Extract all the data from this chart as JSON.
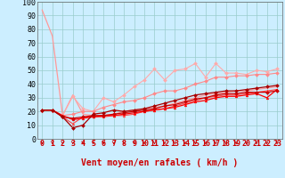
{
  "xlabel": "Vent moyen/en rafales ( km/h )",
  "background_color": "#cceeff",
  "grid_color": "#99cccc",
  "x_ticks": [
    0,
    1,
    2,
    3,
    4,
    5,
    6,
    7,
    8,
    9,
    10,
    11,
    12,
    13,
    14,
    15,
    16,
    17,
    18,
    19,
    20,
    21,
    22,
    23
  ],
  "y_ticks": [
    0,
    10,
    20,
    30,
    40,
    50,
    60,
    70,
    80,
    90,
    100
  ],
  "xlim": [
    -0.5,
    23.5
  ],
  "ylim": [
    0,
    100
  ],
  "series": [
    {
      "x": [
        0,
        1,
        2,
        3,
        4,
        5,
        6,
        7,
        8,
        9,
        10,
        11,
        12,
        13,
        14,
        15,
        16,
        17,
        18,
        19,
        20,
        21,
        22,
        23
      ],
      "y": [
        94,
        75,
        17,
        32,
        18,
        17,
        17,
        18,
        20,
        21,
        22,
        23,
        24,
        26,
        28,
        30,
        32,
        33,
        34,
        35,
        35,
        36,
        37,
        38
      ],
      "color": "#ff9999",
      "marker": "None",
      "lw": 0.9,
      "zorder": 2
    },
    {
      "x": [
        0,
        1,
        2,
        3,
        4,
        5,
        6,
        7,
        8,
        9,
        10,
        11,
        12,
        13,
        14,
        15,
        16,
        17,
        18,
        19,
        20,
        21,
        22,
        23
      ],
      "y": [
        21,
        21,
        17,
        31,
        22,
        20,
        30,
        27,
        32,
        38,
        43,
        51,
        43,
        50,
        51,
        55,
        45,
        55,
        48,
        48,
        47,
        50,
        49,
        51
      ],
      "color": "#ffaaaa",
      "marker": "D",
      "markersize": 2.0,
      "lw": 0.8,
      "zorder": 2
    },
    {
      "x": [
        0,
        1,
        2,
        3,
        4,
        5,
        6,
        7,
        8,
        9,
        10,
        11,
        12,
        13,
        14,
        15,
        16,
        17,
        18,
        19,
        20,
        21,
        22,
        23
      ],
      "y": [
        21,
        21,
        17,
        18,
        20,
        20,
        23,
        25,
        27,
        28,
        30,
        33,
        35,
        35,
        37,
        40,
        42,
        45,
        45,
        46,
        46,
        47,
        47,
        48
      ],
      "color": "#ff8888",
      "marker": "D",
      "markersize": 2.0,
      "lw": 0.8,
      "zorder": 2
    },
    {
      "x": [
        0,
        1,
        2,
        3,
        4,
        5,
        6,
        7,
        8,
        9,
        10,
        11,
        12,
        13,
        14,
        15,
        16,
        17,
        18,
        19,
        20,
        21,
        22,
        23
      ],
      "y": [
        21,
        21,
        16,
        11,
        16,
        16,
        16,
        17,
        17,
        18,
        20,
        21,
        22,
        24,
        26,
        28,
        30,
        31,
        32,
        32,
        33,
        34,
        35,
        36
      ],
      "color": "#ff4444",
      "marker": "^",
      "markersize": 2.0,
      "lw": 0.8,
      "zorder": 2
    },
    {
      "x": [
        0,
        1,
        2,
        3,
        4,
        5,
        6,
        7,
        8,
        9,
        10,
        11,
        12,
        13,
        14,
        15,
        16,
        17,
        18,
        19,
        20,
        21,
        22,
        23
      ],
      "y": [
        21,
        21,
        17,
        14,
        15,
        16,
        17,
        17,
        18,
        19,
        20,
        21,
        22,
        23,
        25,
        27,
        28,
        30,
        31,
        31,
        32,
        33,
        30,
        36
      ],
      "color": "#ff0000",
      "marker": "^",
      "markersize": 2.0,
      "lw": 0.9,
      "zorder": 3
    },
    {
      "x": [
        0,
        1,
        2,
        3,
        4,
        5,
        6,
        7,
        8,
        9,
        10,
        11,
        12,
        13,
        14,
        15,
        16,
        17,
        18,
        19,
        20,
        21,
        22,
        23
      ],
      "y": [
        21,
        21,
        16,
        15,
        16,
        17,
        17,
        18,
        19,
        20,
        21,
        22,
        24,
        25,
        27,
        29,
        30,
        32,
        33,
        33,
        34,
        34,
        34,
        35
      ],
      "color": "#cc0000",
      "marker": "D",
      "markersize": 2.0,
      "lw": 0.9,
      "zorder": 3
    },
    {
      "x": [
        0,
        1,
        2,
        3,
        4,
        5,
        6,
        7,
        8,
        9,
        10,
        11,
        12,
        13,
        14,
        15,
        16,
        17,
        18,
        19,
        20,
        21,
        22,
        23
      ],
      "y": [
        21,
        21,
        16,
        8,
        10,
        18,
        19,
        21,
        20,
        21,
        22,
        24,
        26,
        28,
        30,
        32,
        33,
        34,
        35,
        35,
        36,
        37,
        38,
        39
      ],
      "color": "#aa0000",
      "marker": "D",
      "markersize": 2.0,
      "lw": 0.9,
      "zorder": 3
    }
  ],
  "arrow_color": "#cc0000",
  "xlabel_color": "#cc0000",
  "xlabel_fontsize": 7,
  "tick_fontsize": 6,
  "ytick_color": "#000000",
  "xtick_color": "#cc0000"
}
